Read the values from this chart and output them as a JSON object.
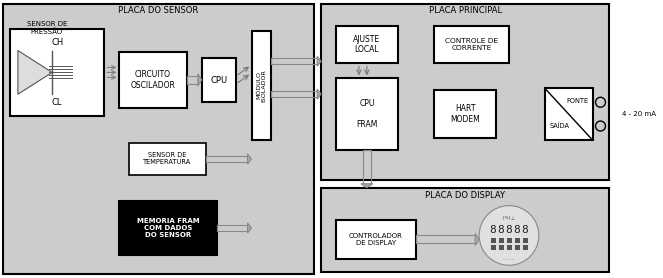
{
  "bg_color": "#cccccc",
  "white": "#ffffff",
  "black": "#000000",
  "fig_width": 6.63,
  "fig_height": 2.78,
  "dpi": 100,
  "placa_sensor_label": "PLACA DO SENSOR",
  "placa_principal_label": "PLACA PRINCIPAL",
  "placa_display_label": "PLACA DO DISPLAY",
  "sensor_pressao_label": "SENSOR DE\nPRESSÃO",
  "ch_label": "CH",
  "cl_label": "CL",
  "circuito_label": "CIRCUITO\nOSCILADOR",
  "cpu_small_label": "CPU",
  "modulo_label": "MÓDULO\nISOLADOR",
  "sensor_temp_label": "SENSOR DE\nTEMPERATURA",
  "memoria_label": "MEMORIA FRAM\nCOM DADOS\nDO SENSOR",
  "ajuste_label": "AJUSTE\nLOCAL",
  "controle_label": "CONTROLE DE\nCORRENTE",
  "cpu_fram_label": "CPU\n\nFRAM",
  "hart_label": "HART\nMODEM",
  "fonte_label": "FONTE",
  "saida_label": "SAÍDA",
  "ma_label": "4 - 20 mA",
  "controlador_label": "CONTROLADOR\nDE DISPLAY"
}
